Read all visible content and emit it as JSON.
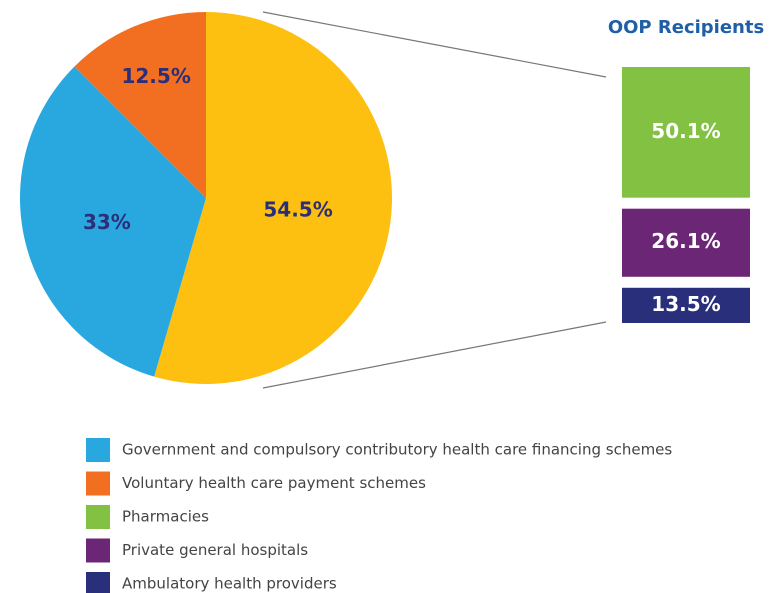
{
  "chart_data": [
    {
      "type": "pie",
      "categories": [
        null,
        "Government and compulsory contributory health care financing schemes",
        "Voluntary health care payment schemes"
      ],
      "values": [
        54.5,
        33,
        12.5
      ],
      "value_labels": [
        "54.5%",
        "33%",
        "12.5%"
      ],
      "colors": [
        "#fdbf10",
        "#29a8e0",
        "#f26f21"
      ]
    },
    {
      "type": "bar",
      "title": "OOP Recipients",
      "categories": [
        "Pharmacies",
        "Private general hospitals",
        "Ambulatory health providers"
      ],
      "values": [
        50.1,
        26.1,
        13.5
      ],
      "value_labels": [
        "50.1%",
        "26.1%",
        "13.5%"
      ],
      "colors": [
        "#82c141",
        "#6b2775",
        "#2a2f7c"
      ]
    }
  ]
}
